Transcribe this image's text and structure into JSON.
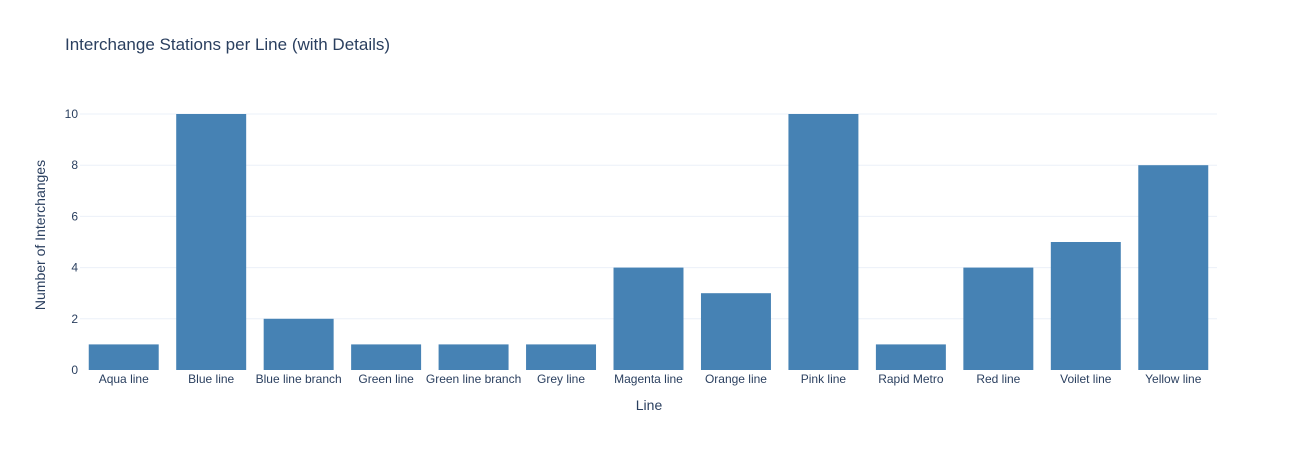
{
  "chart_data": {
    "type": "bar",
    "title": "Interchange Stations per Line (with Details)",
    "xlabel": "Line",
    "ylabel": "Number of Interchanges",
    "categories": [
      "Aqua line",
      "Blue line",
      "Blue line branch",
      "Green line",
      "Green line branch",
      "Grey line",
      "Magenta line",
      "Orange line",
      "Pink line",
      "Rapid Metro",
      "Red line",
      "Voilet line",
      "Yellow line"
    ],
    "values": [
      1,
      10,
      2,
      1,
      1,
      1,
      4,
      3,
      10,
      1,
      4,
      5,
      8
    ],
    "ylim": [
      0,
      10
    ],
    "yticks": [
      0,
      2,
      4,
      6,
      8,
      10
    ],
    "bar_color": "#4682b4",
    "grid": true
  }
}
